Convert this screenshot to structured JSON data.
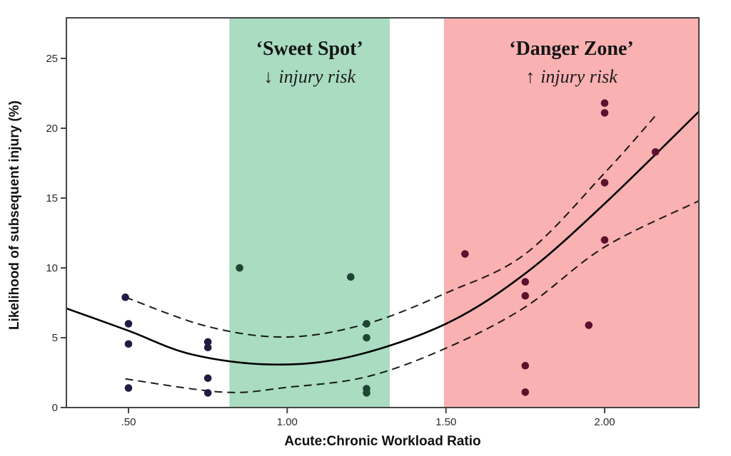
{
  "chart_data": {
    "type": "scatter",
    "title": "",
    "xlabel": "Acute:Chronic Workload Ratio",
    "ylabel": "Likelihood of subsequent injury (%)",
    "xlim": [
      0.3,
      2.3
    ],
    "ylim": [
      0,
      27.9
    ],
    "grid": false,
    "legend": "none",
    "x_ticks": [
      {
        "value": 0.5,
        "label": ".50"
      },
      {
        "value": 1.0,
        "label": "1.00"
      },
      {
        "value": 1.5,
        "label": "1.50"
      },
      {
        "value": 2.0,
        "label": "2.00"
      }
    ],
    "y_ticks": [
      {
        "value": 0,
        "label": "0"
      },
      {
        "value": 5,
        "label": "5"
      },
      {
        "value": 10,
        "label": "10"
      },
      {
        "value": 15,
        "label": "15"
      },
      {
        "value": 20,
        "label": "20"
      },
      {
        "value": 25,
        "label": "25"
      }
    ],
    "bands": [
      {
        "name": "sweet-spot",
        "x0": 0.818,
        "x1": 1.323,
        "color": "#a9dcc1",
        "title": "‘Sweet Spot’",
        "subtitle_arrow": "↓",
        "subtitle": "injury risk"
      },
      {
        "name": "danger-zone",
        "x0": 1.494,
        "x1": 2.3,
        "color": "#f9b1b2",
        "title": "‘Danger Zone’",
        "subtitle_arrow": "↑",
        "subtitle": "injury risk"
      }
    ],
    "point_colors": {
      "white": "#1d1d44",
      "green": "#1e4534",
      "red": "#5e0f2d"
    },
    "points": [
      {
        "x": 0.49,
        "y": 7.9,
        "zone": "white"
      },
      {
        "x": 0.5,
        "y": 6.0,
        "zone": "white"
      },
      {
        "x": 0.5,
        "y": 4.55,
        "zone": "white"
      },
      {
        "x": 0.5,
        "y": 1.4,
        "zone": "white"
      },
      {
        "x": 0.75,
        "y": 4.7,
        "zone": "white"
      },
      {
        "x": 0.75,
        "y": 4.3,
        "zone": "white"
      },
      {
        "x": 0.75,
        "y": 2.1,
        "zone": "white"
      },
      {
        "x": 0.75,
        "y": 1.05,
        "zone": "white"
      },
      {
        "x": 0.85,
        "y": 10.0,
        "zone": "green"
      },
      {
        "x": 1.2,
        "y": 9.35,
        "zone": "green"
      },
      {
        "x": 1.25,
        "y": 6.0,
        "zone": "green"
      },
      {
        "x": 1.25,
        "y": 5.0,
        "zone": "green"
      },
      {
        "x": 1.25,
        "y": 1.35,
        "zone": "green"
      },
      {
        "x": 1.25,
        "y": 1.05,
        "zone": "green"
      },
      {
        "x": 1.56,
        "y": 11.0,
        "zone": "red"
      },
      {
        "x": 1.75,
        "y": 9.0,
        "zone": "red"
      },
      {
        "x": 1.75,
        "y": 8.0,
        "zone": "red"
      },
      {
        "x": 1.75,
        "y": 3.0,
        "zone": "red"
      },
      {
        "x": 1.75,
        "y": 1.1,
        "zone": "red"
      },
      {
        "x": 1.95,
        "y": 5.9,
        "zone": "red"
      },
      {
        "x": 2.0,
        "y": 21.8,
        "zone": "red"
      },
      {
        "x": 2.0,
        "y": 21.1,
        "zone": "red"
      },
      {
        "x": 2.0,
        "y": 16.1,
        "zone": "red"
      },
      {
        "x": 2.0,
        "y": 12.0,
        "zone": "red"
      },
      {
        "x": 2.16,
        "y": 18.3,
        "zone": "red"
      }
    ],
    "fit_line": [
      [
        0.304,
        7.1
      ],
      [
        0.5,
        5.5
      ],
      [
        0.7,
        3.8
      ],
      [
        0.95,
        3.08
      ],
      [
        1.2,
        3.65
      ],
      [
        1.5,
        6.0
      ],
      [
        1.75,
        9.6
      ],
      [
        2.0,
        14.6
      ],
      [
        2.297,
        21.2
      ]
    ],
    "ci_upper": [
      [
        0.49,
        7.9
      ],
      [
        0.75,
        5.8
      ],
      [
        1.0,
        5.05
      ],
      [
        1.25,
        6.0
      ],
      [
        1.5,
        8.2
      ],
      [
        1.75,
        11.0
      ],
      [
        2.0,
        16.8
      ],
      [
        2.16,
        20.9
      ]
    ],
    "ci_lower": [
      [
        0.49,
        2.05
      ],
      [
        0.8,
        1.1
      ],
      [
        1.0,
        1.45
      ],
      [
        1.25,
        2.2
      ],
      [
        1.5,
        4.25
      ],
      [
        1.75,
        7.2
      ],
      [
        2.0,
        11.5
      ],
      [
        2.297,
        14.8
      ]
    ],
    "styles": {
      "frame_color": "#454545",
      "fit_color": "#000000",
      "ci_color": "#1d1d1d",
      "dash_pattern": "11 7"
    }
  }
}
